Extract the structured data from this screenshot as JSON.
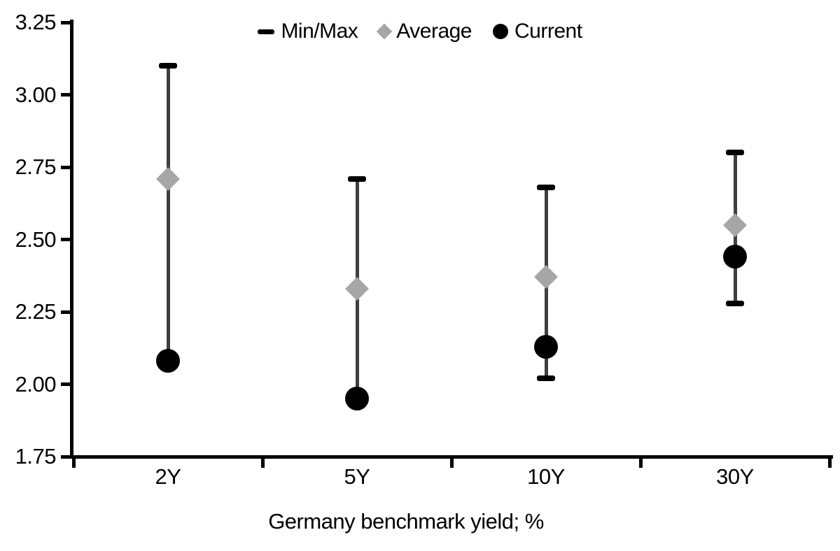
{
  "chart_data": {
    "type": "scatter",
    "subtype": "min-max-range-chart",
    "title": "",
    "xlabel": "Germany benchmark yield; %",
    "ylabel": "",
    "categories": [
      "2Y",
      "5Y",
      "10Y",
      "30Y"
    ],
    "ylim": [
      1.75,
      3.25
    ],
    "y_tick_step": 0.25,
    "y_ticks": [
      "3.25",
      "3.00",
      "2.75",
      "2.50",
      "2.25",
      "2.00",
      "1.75"
    ],
    "grid": false,
    "legend_position": "top-center",
    "series": [
      {
        "name": "Min/Max",
        "marker": "dash",
        "color": "#000000",
        "max": [
          3.1,
          2.71,
          2.68,
          2.8
        ],
        "min": [
          2.08,
          1.95,
          2.02,
          2.28
        ],
        "min_cap_visible": [
          false,
          false,
          true,
          true
        ]
      },
      {
        "name": "Average",
        "marker": "diamond",
        "color": "#A6A6A6",
        "values": [
          2.71,
          2.33,
          2.37,
          2.55
        ]
      },
      {
        "name": "Current",
        "marker": "circle",
        "color": "#000000",
        "values": [
          2.08,
          1.95,
          2.13,
          2.44
        ]
      }
    ],
    "range_line_color": "#3F3F3F",
    "axis_color": "#000000"
  }
}
